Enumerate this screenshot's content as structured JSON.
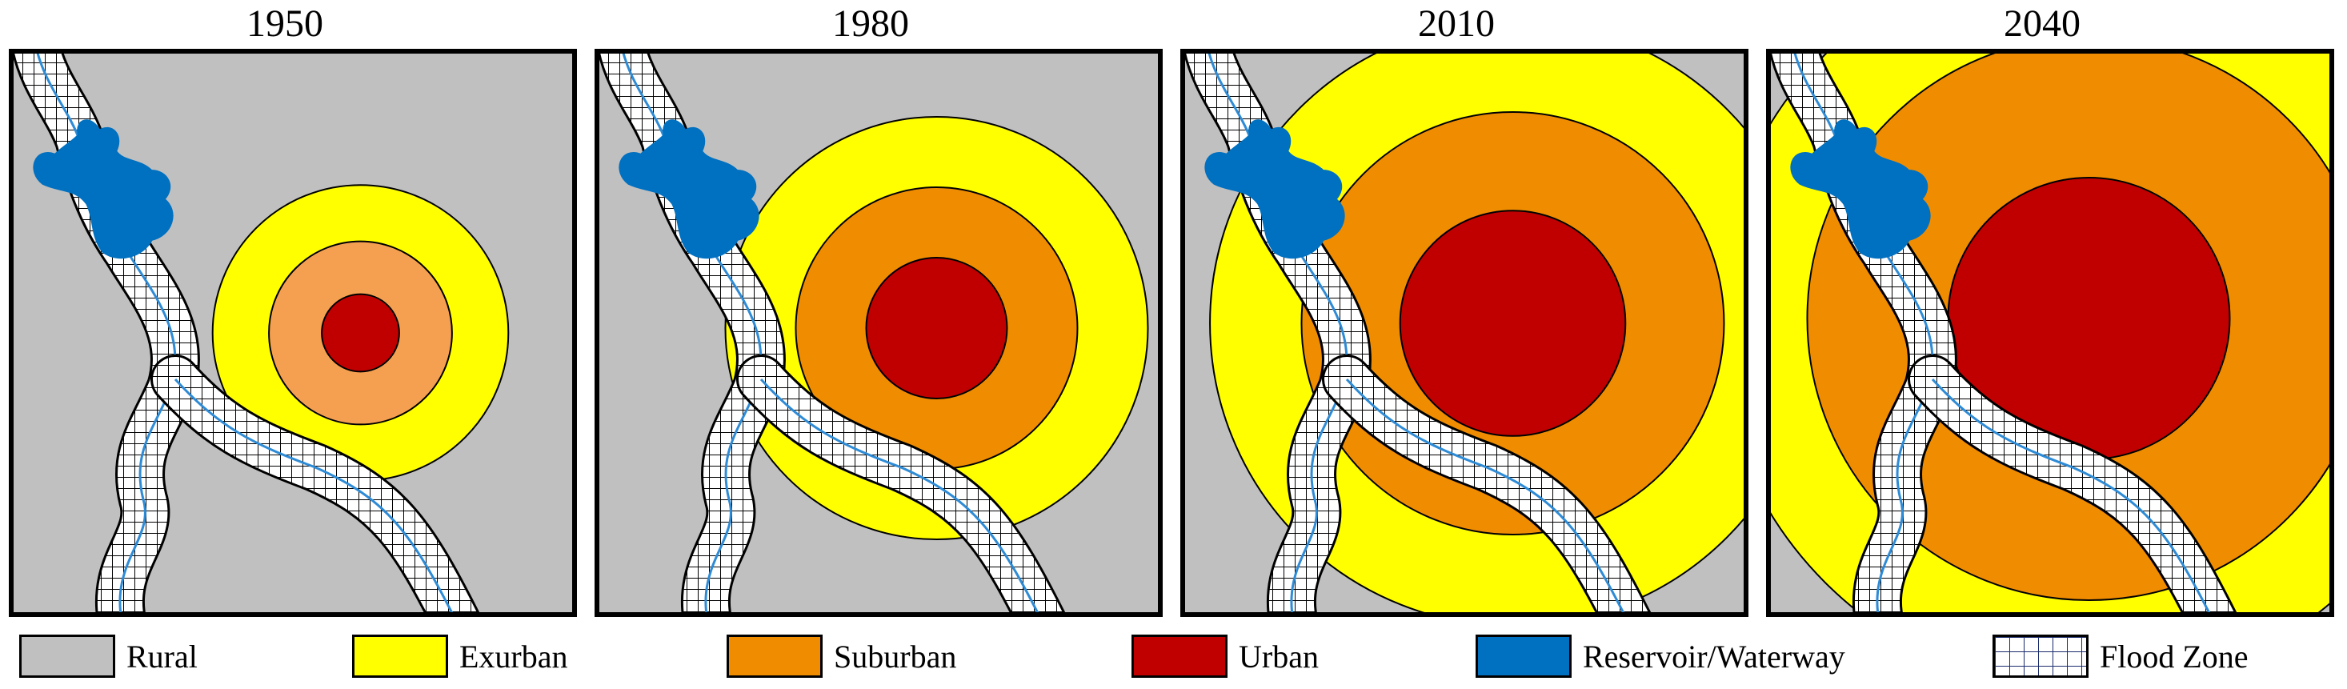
{
  "figure": {
    "panels": [
      {
        "year": "1950",
        "exurban_r": 0.21,
        "suburban_r": 0.13,
        "urban_r": 0.055,
        "suburban_color": "#f5a050"
      },
      {
        "year": "1980",
        "exurban_r": 0.3,
        "suburban_r": 0.2,
        "urban_r": 0.1,
        "suburban_color": "#f08c00"
      },
      {
        "year": "2010",
        "exurban_r": 0.43,
        "suburban_r": 0.3,
        "urban_r": 0.16,
        "suburban_color": "#f08c00"
      },
      {
        "year": "2040",
        "exurban_r": 0.53,
        "suburban_r": 0.4,
        "urban_r": 0.2,
        "suburban_color": "#f08c00"
      }
    ],
    "colors": {
      "rural": "#c0c0c0",
      "exurban": "#ffff00",
      "suburban": "#f08c00",
      "urban": "#c00000",
      "reservoir": "#0070c0",
      "flood_zone_grid": "#000000",
      "waterway_line": "#2e8bd6"
    }
  },
  "legend": {
    "items": [
      {
        "key": "rural",
        "label": "Rural"
      },
      {
        "key": "exurban",
        "label": "Exurban"
      },
      {
        "key": "suburban",
        "label": "Suburban"
      },
      {
        "key": "urban",
        "label": "Urban"
      },
      {
        "key": "reservoir",
        "label": "Reservoir/Waterway"
      },
      {
        "key": "flood",
        "label": "Flood Zone"
      }
    ]
  }
}
